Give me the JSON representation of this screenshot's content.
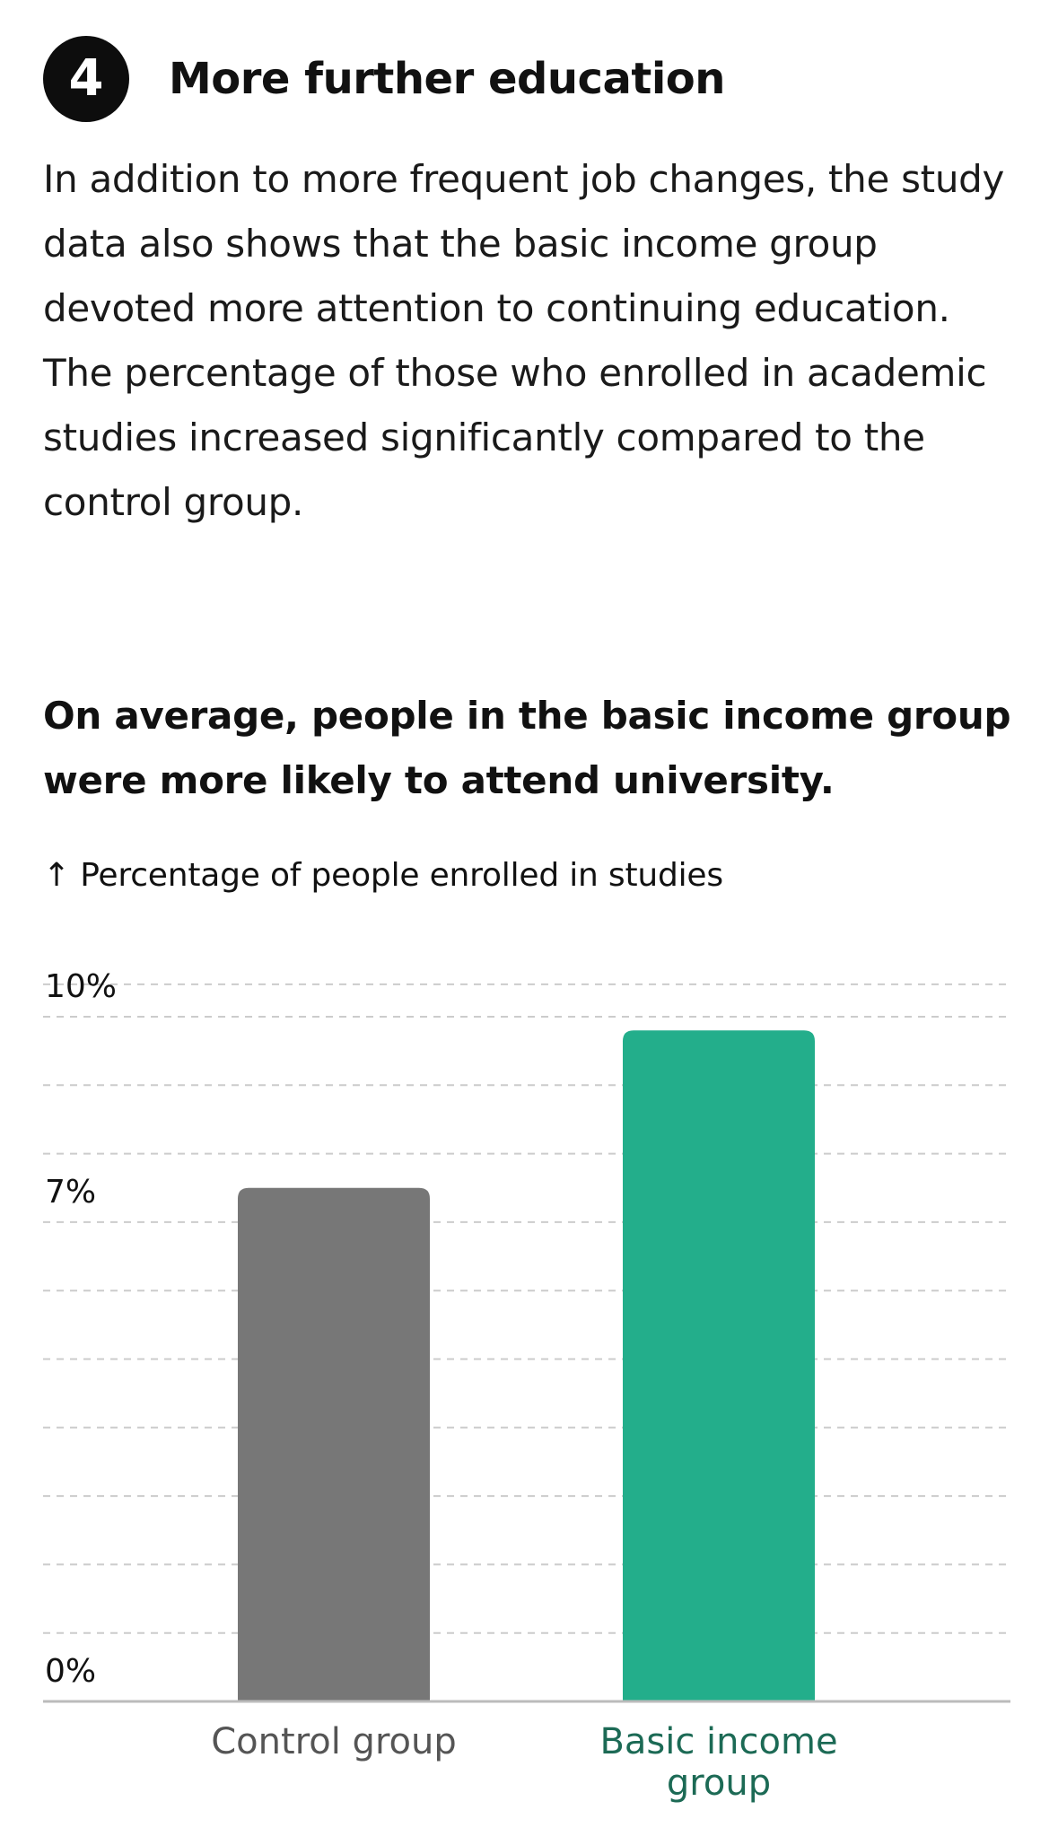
{
  "section": {
    "number": "4",
    "title": "More further education"
  },
  "intro_text": "In addition to more frequent job changes, the study data also shows that the basic income group devoted more attention to continuing education. The percentage of those who enrolled in academic studies increased significantly compared to the control group.",
  "chart_data": {
    "type": "bar",
    "title": "On average, people in the basic income group were more likely to attend university.",
    "ylabel": "↑ Percentage of people enrolled in studies",
    "xlabel": "",
    "categories": [
      "Control group",
      "Basic income group"
    ],
    "values": [
      7.5,
      9.8
    ],
    "ylim": [
      0,
      10.5
    ],
    "yticks": [
      {
        "value": 0,
        "label": "0%"
      },
      {
        "value": 7,
        "label": "7%"
      },
      {
        "value": 10,
        "label": "10%"
      }
    ],
    "gridlines": [
      0,
      1,
      2,
      3,
      4,
      5,
      6,
      7,
      8,
      9,
      10
    ],
    "grid": true,
    "bar_colors": [
      "#777777",
      "#23ae8b"
    ],
    "label_colors": [
      "#555555",
      "#1c6a55"
    ]
  },
  "colors": {
    "grid": "#cccccc",
    "baseline": "#bbbbbb",
    "text": "#111111"
  }
}
